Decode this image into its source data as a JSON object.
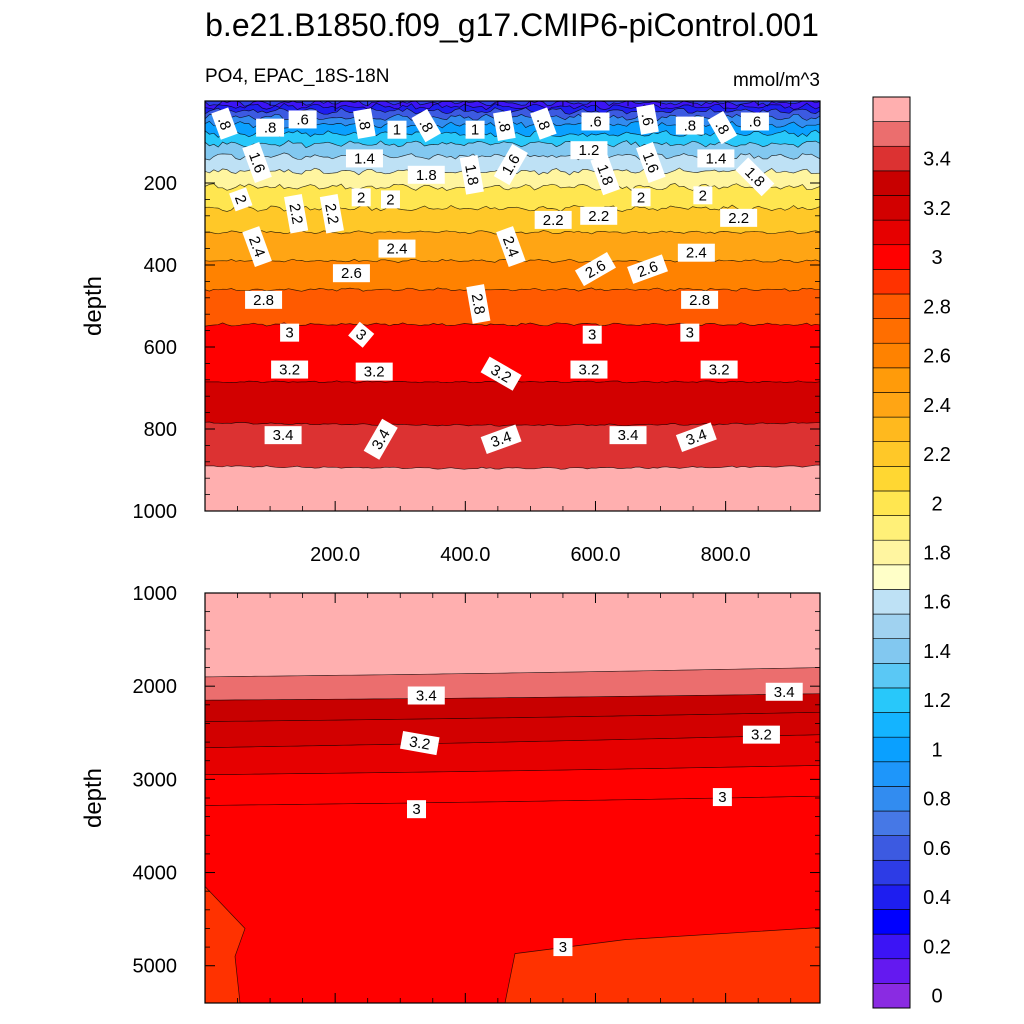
{
  "chart_data": {
    "type": "contour",
    "title": "b.e21.B1850.f09_g17.CMIP6-piControl.001",
    "variable_label": "PO4, EPAC_18S-18N",
    "units_label": "mmol/m^3",
    "ylabel": "depth",
    "xlim": [
      0,
      945
    ],
    "x_ticks": [
      200,
      400,
      600,
      800
    ],
    "x_tick_labels": [
      "200.0",
      "400.0",
      "600.0",
      "800.0"
    ],
    "upper_panel": {
      "ylim": [
        0,
        1000
      ],
      "y_ticks": [
        200,
        400,
        600,
        800,
        1000
      ],
      "y_tick_labels": [
        "200",
        "400",
        "600",
        "800",
        "1000"
      ],
      "isolines": [
        {
          "v": 0.2,
          "d": 4
        },
        {
          "v": 0.4,
          "d": 14
        },
        {
          "v": 0.6,
          "d": 25
        },
        {
          "v": 0.8,
          "d": 40
        },
        {
          "v": 1.0,
          "d": 58
        },
        {
          "v": 1.2,
          "d": 80
        },
        {
          "v": 1.4,
          "d": 105
        },
        {
          "v": 1.6,
          "d": 135
        },
        {
          "v": 1.8,
          "d": 172
        },
        {
          "v": 2.0,
          "d": 210
        },
        {
          "v": 2.2,
          "d": 262
        },
        {
          "v": 2.4,
          "d": 320
        },
        {
          "v": 2.6,
          "d": 390
        },
        {
          "v": 2.8,
          "d": 460
        },
        {
          "v": 3.0,
          "d": 545
        },
        {
          "v": 3.2,
          "d": 685
        },
        {
          "v": 3.4,
          "d": 785
        },
        {
          "v": 3.6,
          "d": 890
        }
      ],
      "contour_labels": [
        {
          "text": ".8",
          "x": 30,
          "depth": 55,
          "rot": 70
        },
        {
          "text": ".8",
          "x": 100,
          "depth": 65,
          "rot": 0
        },
        {
          "text": ".6",
          "x": 150,
          "depth": 45,
          "rot": 0
        },
        {
          "text": ".8",
          "x": 245,
          "depth": 55,
          "rot": 80
        },
        {
          "text": "1",
          "x": 295,
          "depth": 70,
          "rot": 0
        },
        {
          "text": ".8",
          "x": 340,
          "depth": 60,
          "rot": 60
        },
        {
          "text": "1",
          "x": 415,
          "depth": 70,
          "rot": 0
        },
        {
          "text": ".8",
          "x": 460,
          "depth": 60,
          "rot": 80
        },
        {
          "text": ".8",
          "x": 520,
          "depth": 55,
          "rot": 70
        },
        {
          "text": ".6",
          "x": 600,
          "depth": 50,
          "rot": 0
        },
        {
          "text": ".6",
          "x": 680,
          "depth": 45,
          "rot": 80
        },
        {
          "text": ".8",
          "x": 745,
          "depth": 60,
          "rot": 0
        },
        {
          "text": ".8",
          "x": 795,
          "depth": 65,
          "rot": 60
        },
        {
          "text": ".6",
          "x": 845,
          "depth": 50,
          "rot": 0
        },
        {
          "text": "1.6",
          "x": 80,
          "depth": 150,
          "rot": 70
        },
        {
          "text": "1.4",
          "x": 245,
          "depth": 140,
          "rot": 0
        },
        {
          "text": "1.8",
          "x": 340,
          "depth": 180,
          "rot": 0
        },
        {
          "text": "1.8",
          "x": 410,
          "depth": 180,
          "rot": 80
        },
        {
          "text": "1.6",
          "x": 470,
          "depth": 155,
          "rot": -60
        },
        {
          "text": "1.2",
          "x": 590,
          "depth": 120,
          "rot": 0
        },
        {
          "text": "1.8",
          "x": 615,
          "depth": 180,
          "rot": 70
        },
        {
          "text": "1.6",
          "x": 685,
          "depth": 150,
          "rot": 70
        },
        {
          "text": "1.4",
          "x": 785,
          "depth": 140,
          "rot": 0
        },
        {
          "text": "1.8",
          "x": 845,
          "depth": 185,
          "rot": 45
        },
        {
          "text": "2",
          "x": 55,
          "depth": 240,
          "rot": 70
        },
        {
          "text": "2.2",
          "x": 140,
          "depth": 275,
          "rot": 80
        },
        {
          "text": "2.2",
          "x": 195,
          "depth": 275,
          "rot": 80
        },
        {
          "text": "2",
          "x": 240,
          "depth": 235,
          "rot": 0
        },
        {
          "text": "2",
          "x": 285,
          "depth": 240,
          "rot": 0
        },
        {
          "text": "2.2",
          "x": 535,
          "depth": 290,
          "rot": 0
        },
        {
          "text": "2.2",
          "x": 605,
          "depth": 280,
          "rot": 0
        },
        {
          "text": "2",
          "x": 670,
          "depth": 235,
          "rot": 0
        },
        {
          "text": "2",
          "x": 765,
          "depth": 230,
          "rot": 0
        },
        {
          "text": "2.2",
          "x": 820,
          "depth": 285,
          "rot": 0
        },
        {
          "text": "2.4",
          "x": 80,
          "depth": 355,
          "rot": 70
        },
        {
          "text": "2.4",
          "x": 295,
          "depth": 360,
          "rot": 0
        },
        {
          "text": "2.4",
          "x": 470,
          "depth": 355,
          "rot": 70
        },
        {
          "text": "2.6",
          "x": 225,
          "depth": 420,
          "rot": 0
        },
        {
          "text": "2.6",
          "x": 600,
          "depth": 410,
          "rot": -30
        },
        {
          "text": "2.6",
          "x": 680,
          "depth": 410,
          "rot": -20
        },
        {
          "text": "2.4",
          "x": 755,
          "depth": 370,
          "rot": 0
        },
        {
          "text": "2.8",
          "x": 90,
          "depth": 485,
          "rot": 0
        },
        {
          "text": "2.8",
          "x": 420,
          "depth": 495,
          "rot": 80
        },
        {
          "text": "2.8",
          "x": 760,
          "depth": 485,
          "rot": 0
        },
        {
          "text": "3",
          "x": 130,
          "depth": 565,
          "rot": 0
        },
        {
          "text": "3",
          "x": 240,
          "depth": 570,
          "rot": 40
        },
        {
          "text": "3",
          "x": 595,
          "depth": 570,
          "rot": 0
        },
        {
          "text": "3",
          "x": 745,
          "depth": 565,
          "rot": 0
        },
        {
          "text": "3.2",
          "x": 130,
          "depth": 655,
          "rot": 0
        },
        {
          "text": "3.2",
          "x": 260,
          "depth": 660,
          "rot": 0
        },
        {
          "text": "3.2",
          "x": 455,
          "depth": 665,
          "rot": 30
        },
        {
          "text": "3.2",
          "x": 590,
          "depth": 655,
          "rot": 0
        },
        {
          "text": "3.2",
          "x": 790,
          "depth": 655,
          "rot": 0
        },
        {
          "text": "3.4",
          "x": 120,
          "depth": 815,
          "rot": 0
        },
        {
          "text": "3.4",
          "x": 270,
          "depth": 825,
          "rot": -60
        },
        {
          "text": "3.4",
          "x": 455,
          "depth": 825,
          "rot": -20
        },
        {
          "text": "3.4",
          "x": 650,
          "depth": 815,
          "rot": 0
        },
        {
          "text": "3.4",
          "x": 755,
          "depth": 820,
          "rot": -20
        }
      ]
    },
    "lower_panel": {
      "ylim": [
        1000,
        5400
      ],
      "y_ticks": [
        1000,
        2000,
        3000,
        4000,
        5000
      ],
      "y_tick_labels": [
        "1000",
        "2000",
        "3000",
        "4000",
        "5000"
      ],
      "isolines": [
        {
          "v": 3.6,
          "d0": 1900,
          "d1": 1800
        },
        {
          "v": 3.4,
          "d0": 2150,
          "d1": 2080
        },
        {
          "v": 3.3,
          "d0": 2380,
          "d1": 2280
        },
        {
          "v": 3.2,
          "d0": 2660,
          "d1": 2520
        },
        {
          "v": 3.1,
          "d0": 2950,
          "d1": 2850
        },
        {
          "v": 3.0,
          "d0": 3280,
          "d1": 3180
        }
      ],
      "contour_labels": [
        {
          "text": "3.4",
          "x": 340,
          "depth": 2100,
          "rot": 0
        },
        {
          "text": "3.4",
          "x": 890,
          "depth": 2060,
          "rot": 0
        },
        {
          "text": "3.2",
          "x": 330,
          "depth": 2610,
          "rot": 10
        },
        {
          "text": "3.2",
          "x": 855,
          "depth": 2520,
          "rot": 0
        },
        {
          "text": "3",
          "x": 325,
          "depth": 3320,
          "rot": 0
        },
        {
          "text": "3",
          "x": 795,
          "depth": 3190,
          "rot": 0
        },
        {
          "text": "3",
          "x": 550,
          "depth": 4800,
          "rot": 0
        }
      ]
    },
    "colorbar": {
      "levels": [
        0,
        0.1,
        0.2,
        0.3,
        0.4,
        0.5,
        0.6,
        0.7,
        0.8,
        0.9,
        1.0,
        1.1,
        1.2,
        1.3,
        1.4,
        1.5,
        1.6,
        1.7,
        1.8,
        1.9,
        2.0,
        2.1,
        2.2,
        2.3,
        2.4,
        2.5,
        2.6,
        2.7,
        2.8,
        2.9,
        3.0,
        3.1,
        3.2,
        3.3,
        3.4,
        3.5,
        3.6
      ],
      "colors": [
        "#8a2be2",
        "#6419f0",
        "#3c14f5",
        "#0000ff",
        "#1e1ef0",
        "#2d3ce6",
        "#3c5ae1",
        "#4678e6",
        "#328cf0",
        "#1e96fa",
        "#0aa0ff",
        "#14b4ff",
        "#28c8fa",
        "#5ac8f5",
        "#82c8f0",
        "#a0d2f0",
        "#bee1f5",
        "#ffffc8",
        "#fff5a0",
        "#fff078",
        "#ffe650",
        "#ffd732",
        "#ffc828",
        "#ffb91e",
        "#ffa514",
        "#ff9b0a",
        "#ff8200",
        "#ff6e00",
        "#ff5a00",
        "#ff3200",
        "#ff0000",
        "#e60000",
        "#d20000",
        "#c80000",
        "#dc3232",
        "#eb6e6e",
        "#ffafaf"
      ],
      "tick_labels": [
        "0",
        "0.2",
        "0.4",
        "0.6",
        "0.8",
        "1",
        "1.2",
        "1.4",
        "1.6",
        "1.8",
        "2",
        "2.2",
        "2.4",
        "2.6",
        "2.8",
        "3",
        "3.2",
        "3.4"
      ],
      "tick_values": [
        0,
        0.2,
        0.4,
        0.6,
        0.8,
        1.0,
        1.2,
        1.4,
        1.6,
        1.8,
        2.0,
        2.2,
        2.4,
        2.6,
        2.8,
        3.0,
        3.2,
        3.4
      ]
    }
  }
}
